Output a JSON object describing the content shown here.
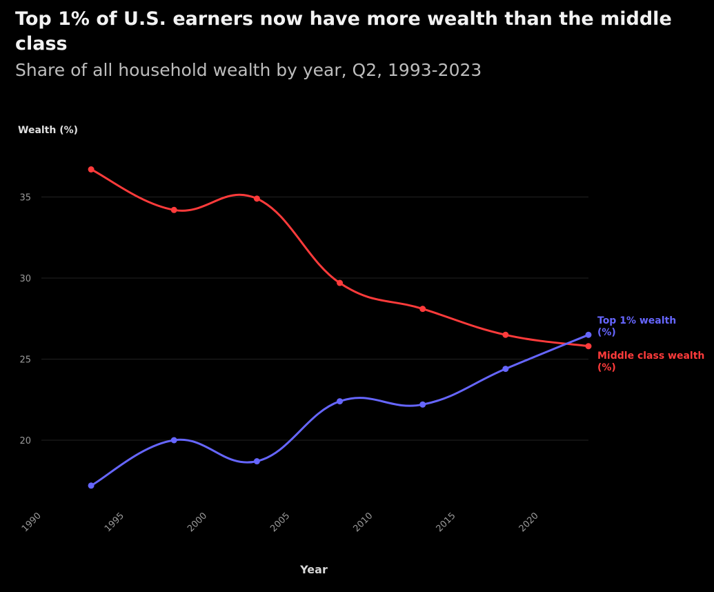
{
  "header": {
    "title": "Top 1% of U.S. earners now have more wealth than the middle class",
    "subtitle": "Share of all household wealth by year, Q2, 1993-2023"
  },
  "colors": {
    "background": "#000000",
    "grid": "#222222",
    "top_series": "#6666ff",
    "middle_series": "#ff3b3b",
    "axis_text": "#9a9a9a"
  },
  "chart_data": {
    "type": "line",
    "title": "Top 1% of U.S. earners now have more wealth than the middle class",
    "subtitle": "Share of all household wealth by year, Q2, 1993-2023",
    "xlabel": "Year",
    "ylabel": "Wealth (%)",
    "xlim": [
      1990,
      2023
    ],
    "ylim": [
      16,
      38
    ],
    "x_ticks": [
      1990,
      1995,
      2000,
      2005,
      2010,
      2015,
      2020
    ],
    "y_ticks": [
      20,
      25,
      30,
      35
    ],
    "grid": true,
    "legend": "inline-right",
    "series": [
      {
        "name": "Middle class wealth (%)",
        "color": "#ff3b3b",
        "points": [
          {
            "x": 1993,
            "y": 36.7
          },
          {
            "x": 1998,
            "y": 34.2
          },
          {
            "x": 2003,
            "y": 34.9
          },
          {
            "x": 2008,
            "y": 29.7
          },
          {
            "x": 2013,
            "y": 28.1
          },
          {
            "x": 2018,
            "y": 26.5
          },
          {
            "x": 2023,
            "y": 25.8
          }
        ]
      },
      {
        "name": "Top 1% wealth (%)",
        "color": "#6666ff",
        "points": [
          {
            "x": 1993,
            "y": 17.2
          },
          {
            "x": 1998,
            "y": 20.0
          },
          {
            "x": 2003,
            "y": 18.7
          },
          {
            "x": 2008,
            "y": 22.4
          },
          {
            "x": 2013,
            "y": 22.2
          },
          {
            "x": 2018,
            "y": 24.4
          },
          {
            "x": 2023,
            "y": 26.5
          }
        ]
      }
    ]
  }
}
